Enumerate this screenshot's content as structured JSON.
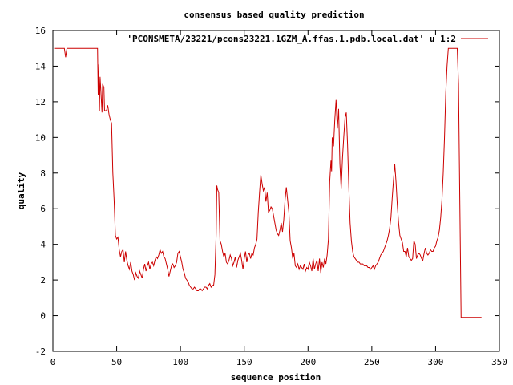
{
  "chart_data": {
    "type": "line",
    "title": "consensus based quality prediction",
    "xlabel": "sequence position",
    "ylabel": "quality",
    "xlim": [
      0,
      350
    ],
    "ylim": [
      -2,
      16
    ],
    "xticks": [
      0,
      50,
      100,
      150,
      200,
      250,
      300,
      350
    ],
    "yticks": [
      -2,
      0,
      2,
      4,
      6,
      8,
      10,
      12,
      14,
      16
    ],
    "grid": false,
    "legend_placement": "top-right",
    "series": [
      {
        "name": "'PCONSMETA/23221/pcons23221.1GZM_A.ffas.1.pdb.local.dat' u 1:2",
        "color": "#cc0000",
        "points": [
          [
            1,
            15
          ],
          [
            9,
            15
          ],
          [
            10,
            14.5
          ],
          [
            11,
            15
          ],
          [
            35,
            15
          ],
          [
            35.5,
            12.4
          ],
          [
            36,
            14.1
          ],
          [
            36.5,
            11.5
          ],
          [
            37,
            13.4
          ],
          [
            38,
            12.1
          ],
          [
            38.5,
            11.4
          ],
          [
            39,
            13
          ],
          [
            40,
            12.8
          ],
          [
            40.5,
            11.5
          ],
          [
            42,
            11.5
          ],
          [
            43,
            11.8
          ],
          [
            44,
            11.3
          ],
          [
            45,
            11
          ],
          [
            46,
            10.8
          ],
          [
            47,
            8
          ],
          [
            48,
            6.5
          ],
          [
            49,
            4.5
          ],
          [
            50,
            4.3
          ],
          [
            51,
            4.4
          ],
          [
            52,
            3.7
          ],
          [
            53,
            3.3
          ],
          [
            54,
            3.6
          ],
          [
            55,
            3.7
          ],
          [
            56,
            3
          ],
          [
            57,
            3.6
          ],
          [
            58,
            3.1
          ],
          [
            59,
            2.8
          ],
          [
            60,
            2.6
          ],
          [
            61,
            3
          ],
          [
            62,
            2.5
          ],
          [
            63,
            2.3
          ],
          [
            64,
            2
          ],
          [
            65,
            2.4
          ],
          [
            66,
            2.2
          ],
          [
            67,
            2.1
          ],
          [
            68,
            2.5
          ],
          [
            69,
            2.3
          ],
          [
            70,
            2.1
          ],
          [
            71,
            2.6
          ],
          [
            72,
            2.9
          ],
          [
            73,
            2.5
          ],
          [
            74,
            2.8
          ],
          [
            75,
            3
          ],
          [
            76,
            2.6
          ],
          [
            77,
            2.9
          ],
          [
            78,
            3
          ],
          [
            79,
            2.8
          ],
          [
            80,
            3.1
          ],
          [
            81,
            3.3
          ],
          [
            82,
            3.2
          ],
          [
            83,
            3.4
          ],
          [
            84,
            3.7
          ],
          [
            85,
            3.5
          ],
          [
            86,
            3.6
          ],
          [
            87,
            3.3
          ],
          [
            88,
            3.2
          ],
          [
            89,
            2.9
          ],
          [
            90,
            2.6
          ],
          [
            91,
            2.2
          ],
          [
            92,
            2.5
          ],
          [
            93,
            2.8
          ],
          [
            94,
            2.9
          ],
          [
            95,
            2.7
          ],
          [
            96,
            2.8
          ],
          [
            97,
            3
          ],
          [
            98,
            3.5
          ],
          [
            99,
            3.6
          ],
          [
            100,
            3.3
          ],
          [
            101,
            3
          ],
          [
            102,
            2.6
          ],
          [
            103,
            2.4
          ],
          [
            104,
            2.1
          ],
          [
            105,
            2
          ],
          [
            106,
            1.9
          ],
          [
            107,
            1.7
          ],
          [
            108,
            1.6
          ],
          [
            109,
            1.5
          ],
          [
            110,
            1.5
          ],
          [
            111,
            1.6
          ],
          [
            112,
            1.5
          ],
          [
            113,
            1.4
          ],
          [
            114,
            1.4
          ],
          [
            115,
            1.5
          ],
          [
            116,
            1.5
          ],
          [
            117,
            1.4
          ],
          [
            118,
            1.5
          ],
          [
            119,
            1.6
          ],
          [
            120,
            1.6
          ],
          [
            121,
            1.5
          ],
          [
            122,
            1.7
          ],
          [
            123,
            1.8
          ],
          [
            124,
            1.6
          ],
          [
            125,
            1.7
          ],
          [
            126,
            1.7
          ],
          [
            127,
            2.3
          ],
          [
            128,
            4.6
          ],
          [
            128.5,
            7.3
          ],
          [
            129,
            7.1
          ],
          [
            130,
            6.9
          ],
          [
            131,
            4.2
          ],
          [
            132,
            4
          ],
          [
            133,
            3.6
          ],
          [
            134,
            3.3
          ],
          [
            135,
            3.5
          ],
          [
            136,
            3
          ],
          [
            137,
            2.9
          ],
          [
            138,
            3.1
          ],
          [
            139,
            3.4
          ],
          [
            140,
            3.2
          ],
          [
            141,
            2.8
          ],
          [
            142,
            3
          ],
          [
            143,
            3.3
          ],
          [
            144,
            2.7
          ],
          [
            145,
            3.1
          ],
          [
            146,
            3.3
          ],
          [
            147,
            3.5
          ],
          [
            148,
            3.1
          ],
          [
            149,
            2.6
          ],
          [
            150,
            3.2
          ],
          [
            151,
            3.6
          ],
          [
            152,
            3
          ],
          [
            153,
            3.4
          ],
          [
            154,
            3.5
          ],
          [
            155,
            3.2
          ],
          [
            156,
            3.5
          ],
          [
            157,
            3.4
          ],
          [
            158,
            3.8
          ],
          [
            159,
            4
          ],
          [
            160,
            4.3
          ],
          [
            161,
            5.8
          ],
          [
            162,
            6.9
          ],
          [
            163,
            7.9
          ],
          [
            164,
            7.4
          ],
          [
            165,
            7
          ],
          [
            166,
            7.2
          ],
          [
            167,
            6.4
          ],
          [
            168,
            6.9
          ],
          [
            169,
            5.8
          ],
          [
            170,
            5.9
          ],
          [
            171,
            6.1
          ],
          [
            172,
            6
          ],
          [
            173,
            5.6
          ],
          [
            174,
            5.2
          ],
          [
            175,
            4.8
          ],
          [
            176,
            4.6
          ],
          [
            177,
            4.5
          ],
          [
            178,
            4.8
          ],
          [
            179,
            5.2
          ],
          [
            180,
            4.7
          ],
          [
            181,
            5.4
          ],
          [
            182,
            6.5
          ],
          [
            183,
            7.2
          ],
          [
            184,
            6.5
          ],
          [
            185,
            5.8
          ],
          [
            186,
            4.2
          ],
          [
            187,
            3.8
          ],
          [
            188,
            3.2
          ],
          [
            189,
            3.5
          ],
          [
            190,
            2.8
          ],
          [
            191,
            2.7
          ],
          [
            192,
            2.9
          ],
          [
            193,
            2.6
          ],
          [
            194,
            2.8
          ],
          [
            195,
            2.7
          ],
          [
            196,
            2.6
          ],
          [
            197,
            2.9
          ],
          [
            198,
            2.5
          ],
          [
            199,
            2.7
          ],
          [
            200,
            2.6
          ],
          [
            201,
            3
          ],
          [
            202,
            2.8
          ],
          [
            203,
            2.5
          ],
          [
            204,
            3.2
          ],
          [
            205,
            2.6
          ],
          [
            206,
            2.9
          ],
          [
            207,
            3.1
          ],
          [
            208,
            2.5
          ],
          [
            209,
            3.2
          ],
          [
            210,
            2.4
          ],
          [
            211,
            3
          ],
          [
            212,
            2.7
          ],
          [
            213,
            3.2
          ],
          [
            214,
            2.9
          ],
          [
            215,
            3.4
          ],
          [
            216,
            4.3
          ],
          [
            217,
            7.5
          ],
          [
            218,
            8.7
          ],
          [
            218.5,
            8.1
          ],
          [
            219,
            10
          ],
          [
            220,
            9.5
          ],
          [
            221,
            11
          ],
          [
            222,
            12.1
          ],
          [
            223,
            10.5
          ],
          [
            224,
            11.6
          ],
          [
            225,
            8.5
          ],
          [
            226,
            7.1
          ],
          [
            227,
            8.8
          ],
          [
            228,
            10
          ],
          [
            229,
            11.1
          ],
          [
            230,
            11.4
          ],
          [
            231,
            9.6
          ],
          [
            232,
            7.2
          ],
          [
            233,
            5.2
          ],
          [
            234,
            4.2
          ],
          [
            235,
            3.6
          ],
          [
            236,
            3.3
          ],
          [
            237,
            3.2
          ],
          [
            238,
            3.1
          ],
          [
            239,
            3
          ],
          [
            240,
            3
          ],
          [
            241,
            2.9
          ],
          [
            242,
            2.9
          ],
          [
            243,
            2.9
          ],
          [
            244,
            2.8
          ],
          [
            245,
            2.8
          ],
          [
            246,
            2.8
          ],
          [
            247,
            2.7
          ],
          [
            248,
            2.7
          ],
          [
            249,
            2.6
          ],
          [
            250,
            2.7
          ],
          [
            251,
            2.8
          ],
          [
            252,
            2.6
          ],
          [
            253,
            2.8
          ],
          [
            254,
            2.9
          ],
          [
            255,
            3
          ],
          [
            256,
            3.2
          ],
          [
            257,
            3.4
          ],
          [
            258,
            3.5
          ],
          [
            259,
            3.6
          ],
          [
            260,
            3.8
          ],
          [
            261,
            4
          ],
          [
            262,
            4.2
          ],
          [
            263,
            4.5
          ],
          [
            264,
            4.9
          ],
          [
            265,
            5.5
          ],
          [
            266,
            6.6
          ],
          [
            267,
            7.6
          ],
          [
            268,
            8.5
          ],
          [
            269,
            7.5
          ],
          [
            270,
            6.2
          ],
          [
            271,
            5.2
          ],
          [
            272,
            4.5
          ],
          [
            273,
            4.3
          ],
          [
            274,
            4.1
          ],
          [
            275,
            3.6
          ],
          [
            276,
            3.6
          ],
          [
            277,
            3.3
          ],
          [
            278,
            3.8
          ],
          [
            279,
            3.3
          ],
          [
            280,
            3.2
          ],
          [
            281,
            3.1
          ],
          [
            282,
            3.2
          ],
          [
            283,
            4.2
          ],
          [
            284,
            4
          ],
          [
            285,
            3.2
          ],
          [
            286,
            3.4
          ],
          [
            287,
            3.5
          ],
          [
            288,
            3.4
          ],
          [
            289,
            3.2
          ],
          [
            290,
            3.1
          ],
          [
            291,
            3.5
          ],
          [
            292,
            3.8
          ],
          [
            293,
            3.5
          ],
          [
            294,
            3.4
          ],
          [
            295,
            3.5
          ],
          [
            296,
            3.7
          ],
          [
            297,
            3.6
          ],
          [
            298,
            3.6
          ],
          [
            299,
            3.8
          ],
          [
            300,
            3.9
          ],
          [
            301,
            4.2
          ],
          [
            302,
            4.4
          ],
          [
            303,
            4.8
          ],
          [
            304,
            5.5
          ],
          [
            305,
            6.5
          ],
          [
            306,
            8
          ],
          [
            307,
            10
          ],
          [
            308,
            12.5
          ],
          [
            309,
            14
          ],
          [
            310,
            15
          ],
          [
            317,
            15
          ],
          [
            318,
            13
          ],
          [
            320,
            -0.1
          ],
          [
            336,
            -0.1
          ]
        ]
      }
    ]
  }
}
